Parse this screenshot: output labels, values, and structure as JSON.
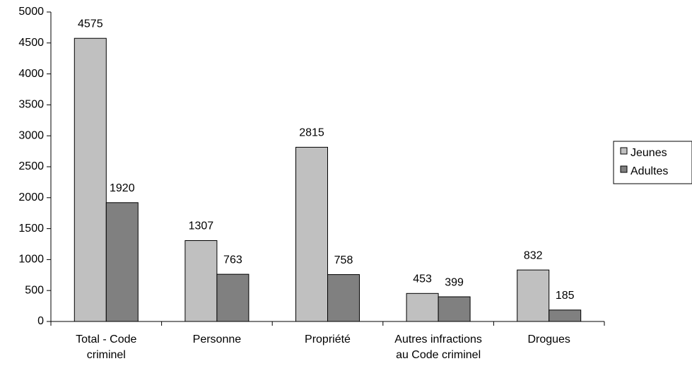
{
  "chart_data": {
    "type": "bar",
    "categories": [
      "Total - Code criminel",
      "Personne",
      "Propriété",
      "Autres infractions au Code criminel",
      "Drogues"
    ],
    "series": [
      {
        "name": "Jeunes",
        "color": "#c0c0c0",
        "values": [
          4575,
          1307,
          2815,
          453,
          832
        ]
      },
      {
        "name": "Adultes",
        "color": "#808080",
        "values": [
          1920,
          763,
          758,
          399,
          185
        ]
      }
    ],
    "ylim": [
      0,
      5000
    ],
    "yticks": [
      0,
      500,
      1000,
      1500,
      2000,
      2500,
      3000,
      3500,
      4000,
      4500,
      5000
    ],
    "grid": false,
    "legend": "right"
  }
}
